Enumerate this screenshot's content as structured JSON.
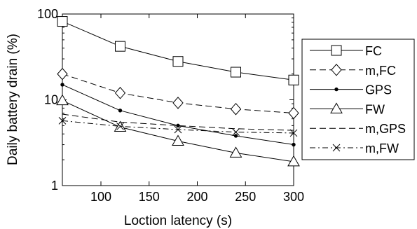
{
  "chart_data": {
    "type": "line",
    "xlabel": "Loction latency (s)",
    "ylabel": "Daily battery drain (%)",
    "xlim": [
      60,
      300
    ],
    "ylim": [
      1,
      100
    ],
    "yscale": "log",
    "xticks": [
      100,
      150,
      200,
      250,
      300
    ],
    "yticks": [
      1,
      10,
      100
    ],
    "ytick_labels": [
      "1",
      "10",
      "100"
    ],
    "grid": false,
    "legend_position": "right",
    "x": [
      60,
      120,
      180,
      240,
      300
    ],
    "series": [
      {
        "name": "FC",
        "marker": "square",
        "dash": "solid",
        "values": [
          82,
          42,
          28,
          21,
          17
        ]
      },
      {
        "name": "m,FC",
        "marker": "diamond",
        "dash": "dashed",
        "values": [
          20,
          12,
          9.2,
          7.8,
          7.0
        ]
      },
      {
        "name": "GPS",
        "marker": "dot",
        "dash": "solid",
        "values": [
          15,
          7.5,
          5.0,
          3.8,
          3.0
        ]
      },
      {
        "name": "FW",
        "marker": "triangle",
        "dash": "solid",
        "values": [
          9.8,
          4.8,
          3.3,
          2.4,
          1.9
        ]
      },
      {
        "name": "m,GPS",
        "marker": "none",
        "dash": "dashed",
        "values": [
          6.8,
          5.5,
          5.0,
          4.6,
          4.4
        ]
      },
      {
        "name": "m,FW",
        "marker": "x",
        "dash": "dashdot",
        "values": [
          5.7,
          4.9,
          4.5,
          4.2,
          4.1
        ]
      }
    ]
  }
}
